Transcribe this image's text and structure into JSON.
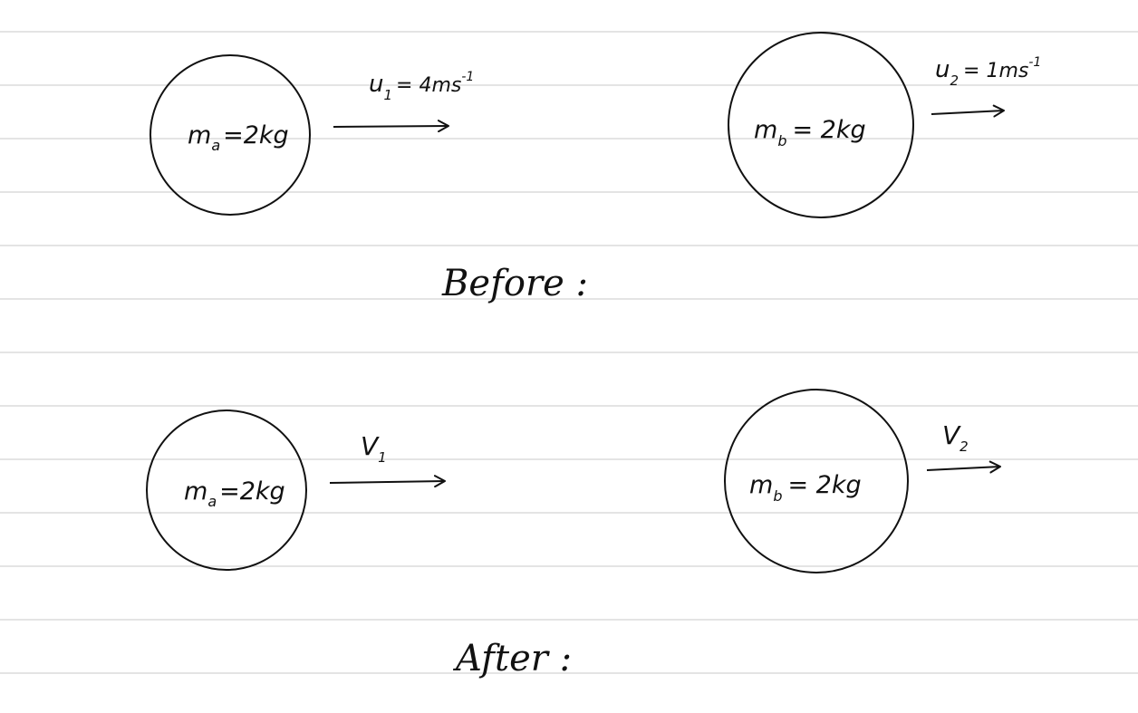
{
  "colors": {
    "ink": "#111111",
    "rule": "#d4d4d4",
    "paper": "#ffffff"
  },
  "before": {
    "heading": "Before :",
    "ball_a": {
      "label": "m",
      "sub": "a",
      "mass": "=2kg",
      "velocity": "u",
      "vsub": "1",
      "vvalue": "= 4ms",
      "vexp": "-1"
    },
    "ball_b": {
      "label": "m",
      "sub": "b",
      "mass": "= 2kg",
      "velocity": "u",
      "vsub": "2",
      "vvalue": "= 1ms",
      "vexp": "-1"
    }
  },
  "after": {
    "heading": "After :",
    "ball_a": {
      "label": "m",
      "sub": "a",
      "mass": "=2kg",
      "velocity": "V",
      "vsub": "1"
    },
    "ball_b": {
      "label": "m",
      "sub": "b",
      "mass": "= 2kg",
      "velocity": "V",
      "vsub": "2"
    }
  }
}
